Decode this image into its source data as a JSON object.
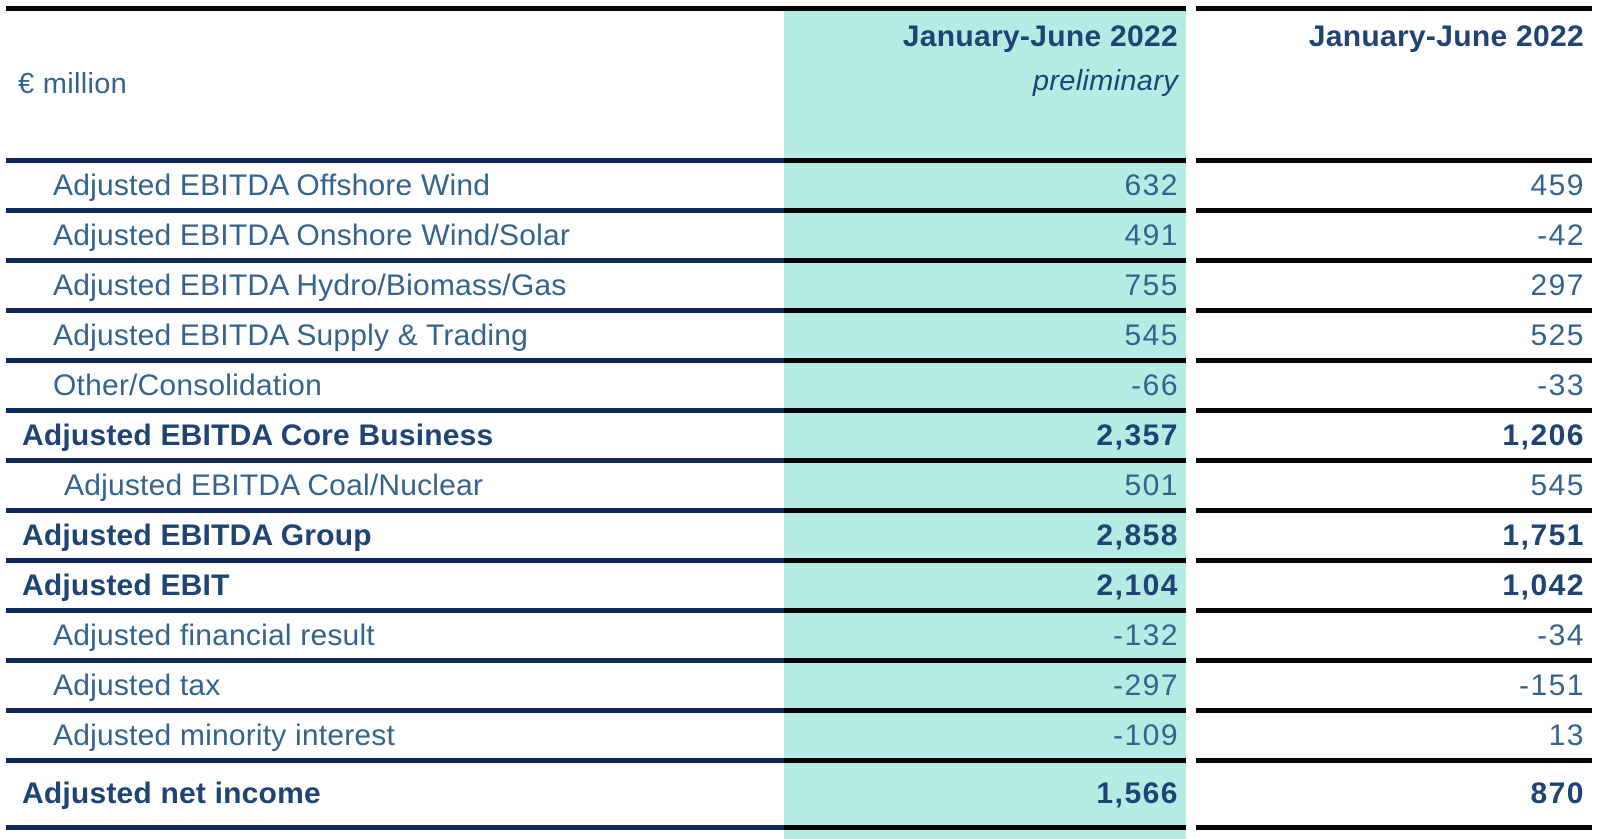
{
  "table": {
    "unit_label": "€ million",
    "columns": [
      {
        "title": "January-June 2022",
        "subtitle": "preliminary",
        "highlight": true
      },
      {
        "title": "January-June 2022",
        "subtitle": "",
        "highlight": false
      }
    ],
    "colors": {
      "highlight_bg": "#b4ebe2",
      "separator_navy": "#10295a",
      "separator_black": "#050505",
      "emphasis_text": "#1e4374",
      "regular_text": "#35638f"
    },
    "rows": [
      {
        "label": "Adjusted EBITDA Offshore Wind",
        "values": [
          "632",
          "459"
        ],
        "bold": false,
        "indent": 1
      },
      {
        "label": "Adjusted EBITDA Onshore Wind/Solar",
        "values": [
          "491",
          "-42"
        ],
        "bold": false,
        "indent": 1
      },
      {
        "label": "Adjusted EBITDA Hydro/Biomass/Gas",
        "values": [
          "755",
          "297"
        ],
        "bold": false,
        "indent": 1
      },
      {
        "label": "Adjusted EBITDA Supply & Trading",
        "values": [
          "545",
          "525"
        ],
        "bold": false,
        "indent": 1
      },
      {
        "label": "Other/Consolidation",
        "values": [
          "-66",
          "-33"
        ],
        "bold": false,
        "indent": 1
      },
      {
        "label": "Adjusted EBITDA Core Business",
        "values": [
          "2,357",
          "1,206"
        ],
        "bold": true,
        "indent": 0
      },
      {
        "label": "Adjusted EBITDA Coal/Nuclear",
        "values": [
          "501",
          "545"
        ],
        "bold": false,
        "indent": 2
      },
      {
        "label": "Adjusted EBITDA Group",
        "values": [
          "2,858",
          "1,751"
        ],
        "bold": true,
        "indent": 0
      },
      {
        "label": "Adjusted EBIT",
        "values": [
          "2,104",
          "1,042"
        ],
        "bold": true,
        "indent": 0
      },
      {
        "label": "Adjusted financial result",
        "values": [
          "-132",
          "-34"
        ],
        "bold": false,
        "indent": 1
      },
      {
        "label": "Adjusted tax",
        "values": [
          "-297",
          "-151"
        ],
        "bold": false,
        "indent": 1
      },
      {
        "label": "Adjusted minority interest",
        "values": [
          "-109",
          "13"
        ],
        "bold": false,
        "indent": 1
      },
      {
        "label": "Adjusted net income",
        "values": [
          "1,566",
          "870"
        ],
        "bold": true,
        "indent": 0
      }
    ]
  }
}
